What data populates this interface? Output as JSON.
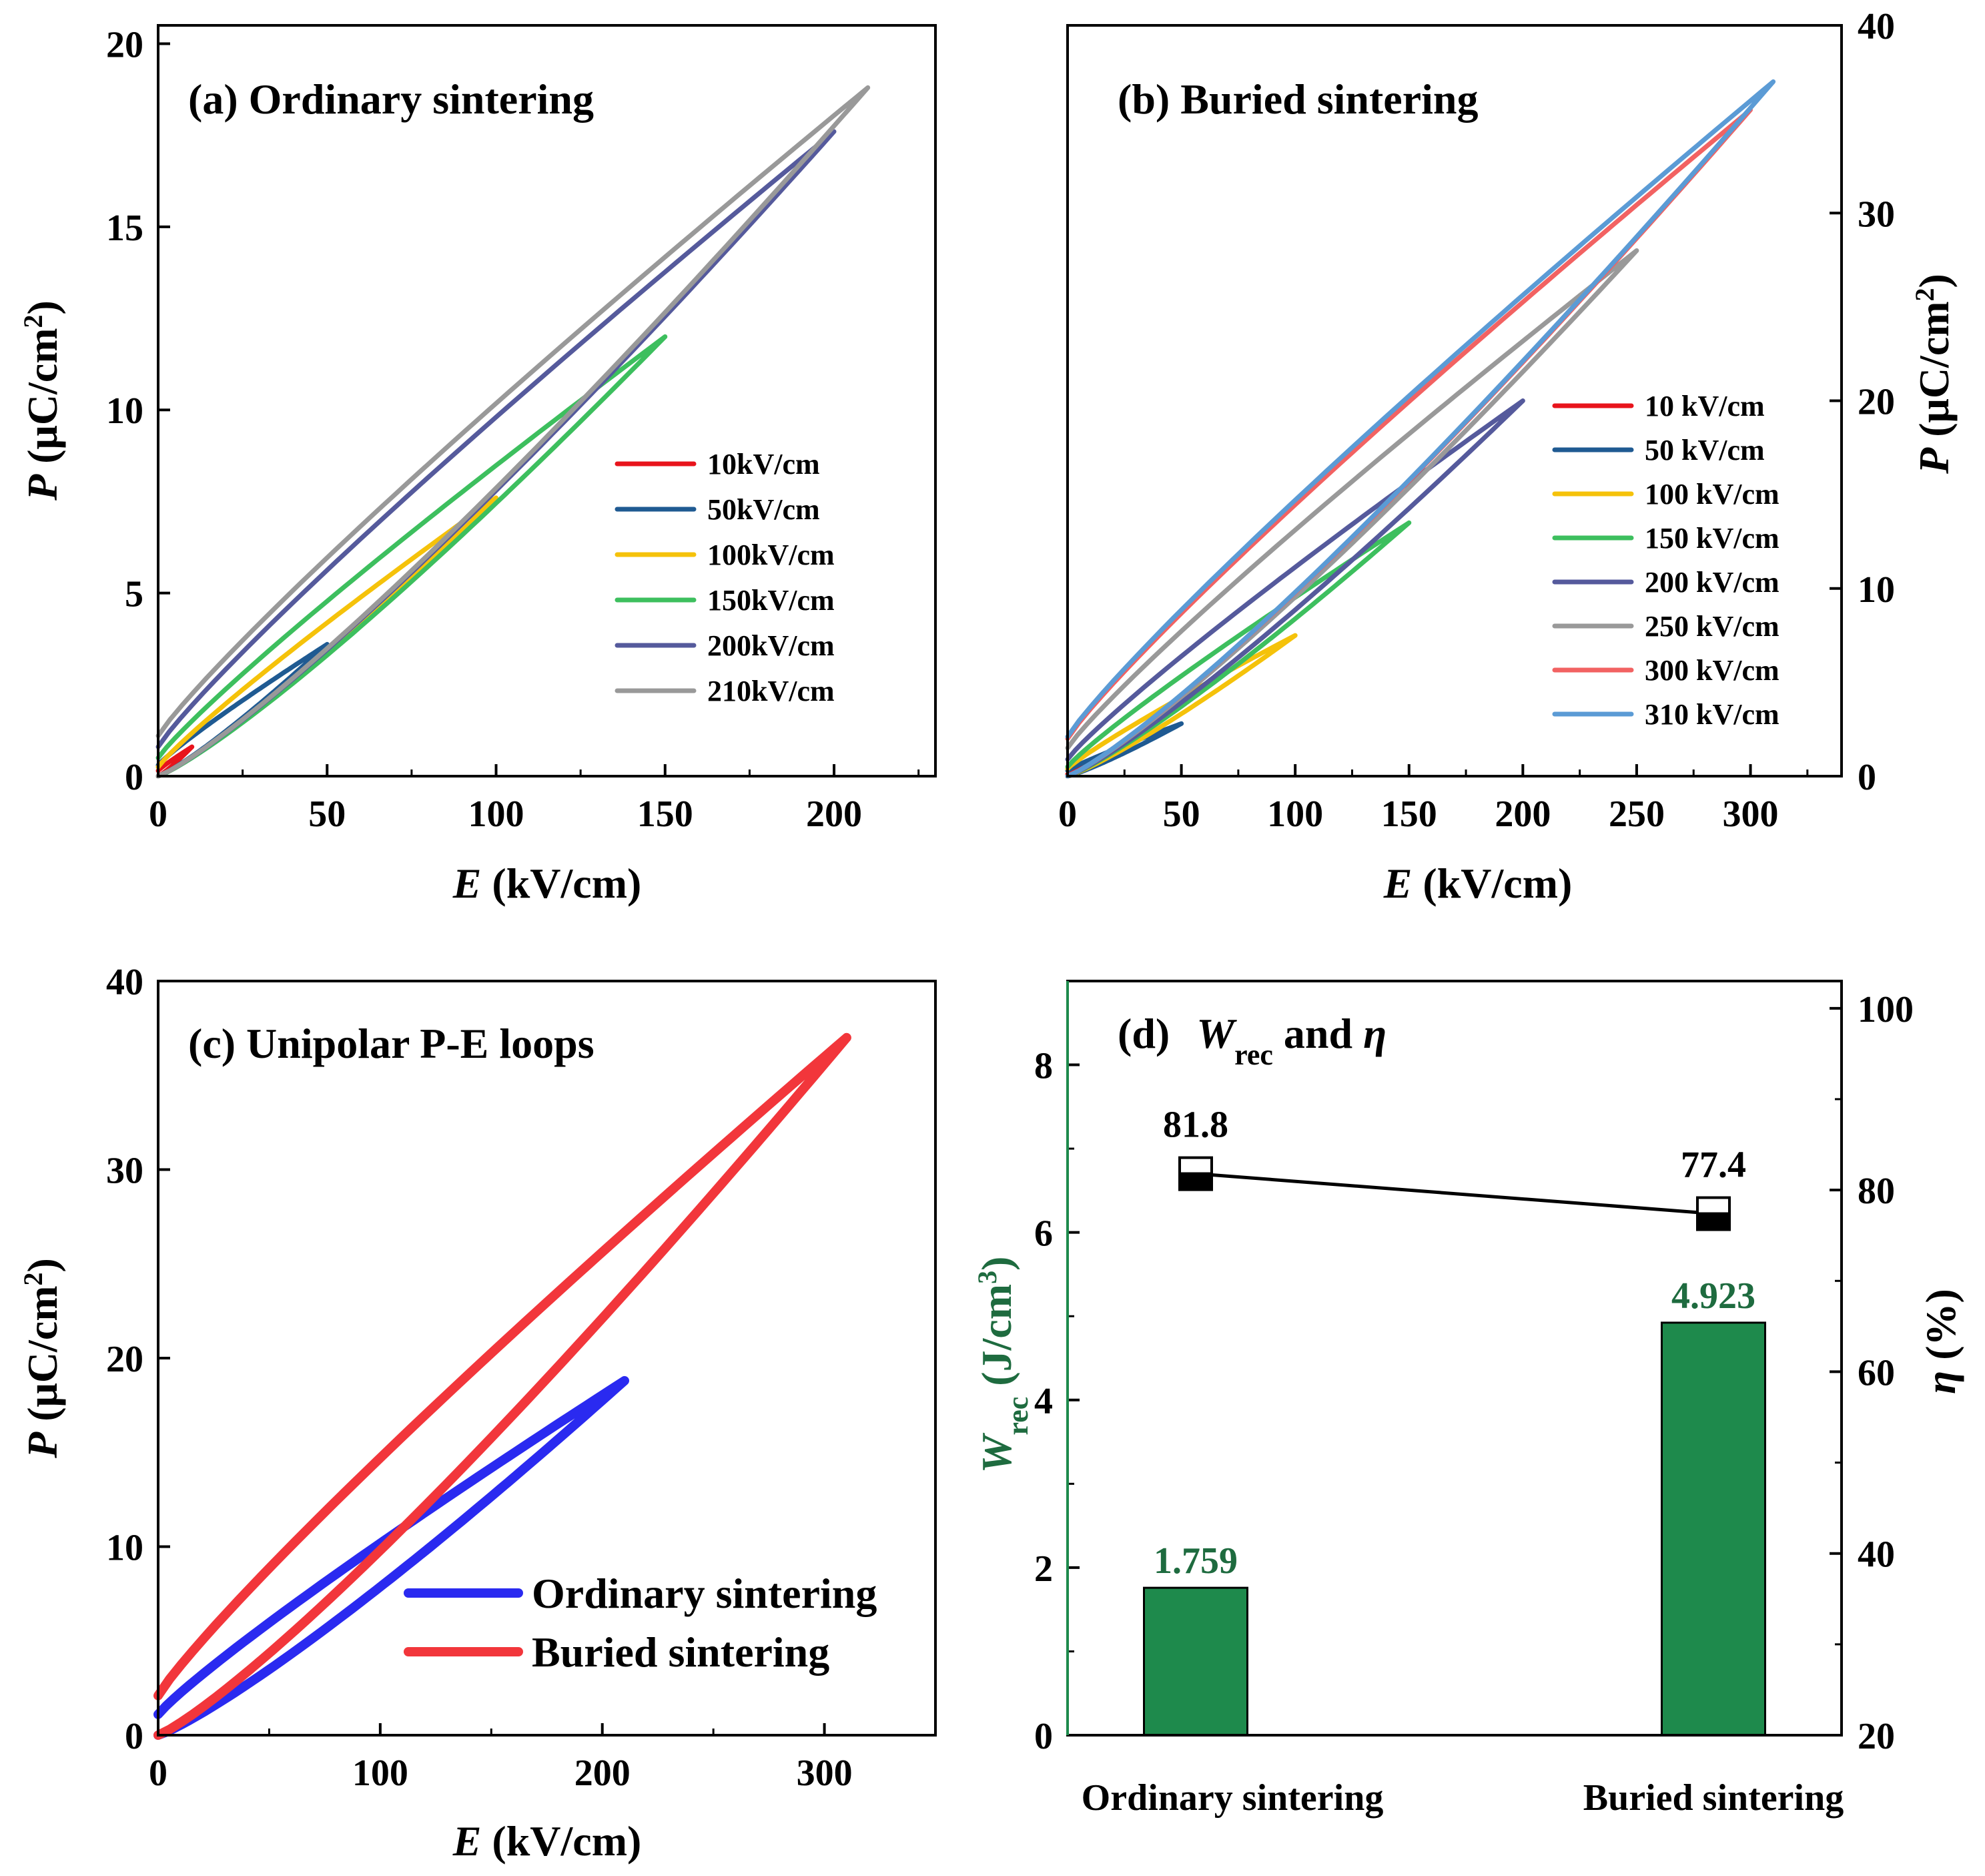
{
  "colors": {
    "c10": "#e8141c",
    "c50": "#1f5a92",
    "c100": "#f5c20a",
    "c150": "#3dbf5e",
    "c200": "#555a9c",
    "c210": "#999999",
    "c250": "#999999",
    "c300": "#f26262",
    "c310": "#5b9bd5",
    "ordinary": "#2a2af0",
    "buried": "#f2363b",
    "bar": "#1e8a4c",
    "barText": "#1e6b3f"
  },
  "chart_data": [
    {
      "id": "a",
      "type": "line",
      "title": "(a) Ordinary sintering",
      "xlabel_italic": "E",
      "xlabel_rest": " (kV/cm)",
      "ylabel_italic": "P",
      "ylabel_rest": " (μC/cm",
      "ylabel_sup": "2",
      "ylabel_close": ")",
      "xlim": [
        0,
        230
      ],
      "ylim": [
        0,
        20.5
      ],
      "xticks": [
        0,
        50,
        100,
        150,
        200
      ],
      "yticks": [
        0,
        5,
        10,
        15,
        20
      ],
      "series": [
        {
          "name": "10kV/cm",
          "emax": 10,
          "pmax": 0.8,
          "pr": 0.15,
          "color": "#e8141c"
        },
        {
          "name": "50kV/cm",
          "emax": 50,
          "pmax": 3.6,
          "pr": 0.3,
          "color": "#1f5a92"
        },
        {
          "name": "100kV/cm",
          "emax": 100,
          "pmax": 7.6,
          "pr": 0.25,
          "color": "#f5c20a"
        },
        {
          "name": "150kV/cm",
          "emax": 150,
          "pmax": 12.0,
          "pr": 0.5,
          "color": "#3dbf5e"
        },
        {
          "name": "200kV/cm",
          "emax": 200,
          "pmax": 17.6,
          "pr": 0.8,
          "color": "#555a9c"
        },
        {
          "name": "210kV/cm",
          "emax": 210,
          "pmax": 18.8,
          "pr": 1.1,
          "color": "#999999"
        }
      ]
    },
    {
      "id": "b",
      "type": "line",
      "title": "(b)  Buried sintering",
      "xlabel_italic": "E",
      "xlabel_rest": " (kV/cm)",
      "ylabel_italic": "P",
      "ylabel_rest": " (μC/cm",
      "ylabel_sup": "2",
      "ylabel_close": ")",
      "xlim": [
        0,
        340
      ],
      "ylim": [
        0,
        40
      ],
      "xticks": [
        0,
        50,
        100,
        150,
        200,
        250,
        300
      ],
      "yticks": [
        0,
        10,
        20,
        30,
        40
      ],
      "series": [
        {
          "name": "10 kV/cm",
          "emax": 10,
          "pmax": 0.6,
          "pr": 0.1,
          "color": "#e8141c"
        },
        {
          "name": "50 kV/cm",
          "emax": 50,
          "pmax": 2.8,
          "pr": 0.3,
          "color": "#1f5a92"
        },
        {
          "name": "100 kV/cm",
          "emax": 100,
          "pmax": 7.5,
          "pr": 0.4,
          "color": "#f5c20a"
        },
        {
          "name": "150 kV/cm",
          "emax": 150,
          "pmax": 13.5,
          "pr": 0.5,
          "color": "#3dbf5e"
        },
        {
          "name": "200 kV/cm",
          "emax": 200,
          "pmax": 20.0,
          "pr": 0.9,
          "color": "#555a9c"
        },
        {
          "name": "250 kV/cm",
          "emax": 250,
          "pmax": 28.0,
          "pr": 1.5,
          "color": "#999999"
        },
        {
          "name": "300 kV/cm",
          "emax": 300,
          "pmax": 35.5,
          "pr": 2.0,
          "color": "#f26262"
        },
        {
          "name": "310 kV/cm",
          "emax": 310,
          "pmax": 37.0,
          "pr": 2.1,
          "color": "#5b9bd5"
        }
      ]
    },
    {
      "id": "c",
      "type": "line",
      "title": "(c)  Unipolar P-E loops",
      "xlabel_italic": "E",
      "xlabel_rest": " (kV/cm)",
      "ylabel_italic": "P",
      "ylabel_rest": " (μC/cm",
      "ylabel_sup": "2",
      "ylabel_close": ")",
      "xlim": [
        0,
        350
      ],
      "ylim": [
        0,
        40
      ],
      "xticks": [
        0,
        100,
        200,
        300
      ],
      "yticks": [
        0,
        10,
        20,
        30,
        40
      ],
      "series": [
        {
          "name": "Ordinary sintering",
          "emax": 210,
          "pmax": 18.8,
          "pr": 1.1,
          "color": "#2a2af0"
        },
        {
          "name": "Buried sintering",
          "emax": 310,
          "pmax": 37.0,
          "pr": 2.1,
          "color": "#f2363b"
        }
      ]
    },
    {
      "id": "d",
      "type": "bar",
      "title_prefix": "(d)",
      "title_w": "W",
      "title_sub": "rec",
      "title_and": " and ",
      "title_eta": "η",
      "categories": [
        "Ordinary sintering",
        "Buried sintering"
      ],
      "wrec_values": [
        1.759,
        4.923
      ],
      "wrec_labels": [
        "1.759",
        "4.923"
      ],
      "eta_values": [
        81.8,
        77.4
      ],
      "eta_labels": [
        "81.8",
        "77.4"
      ],
      "ylim_left": [
        0,
        9.0
      ],
      "yticks_left": [
        0,
        2,
        4,
        6,
        8
      ],
      "ylim_right": [
        20,
        103
      ],
      "yticks_right": [
        20,
        40,
        60,
        80,
        100
      ],
      "ylabel_left_w": "W",
      "ylabel_left_sub": "rec",
      "ylabel_left_rest": " (J/cm",
      "ylabel_left_sup": "3",
      "ylabel_left_close": ")",
      "ylabel_right_eta": "η",
      "ylabel_right_rest": " (%)"
    }
  ]
}
